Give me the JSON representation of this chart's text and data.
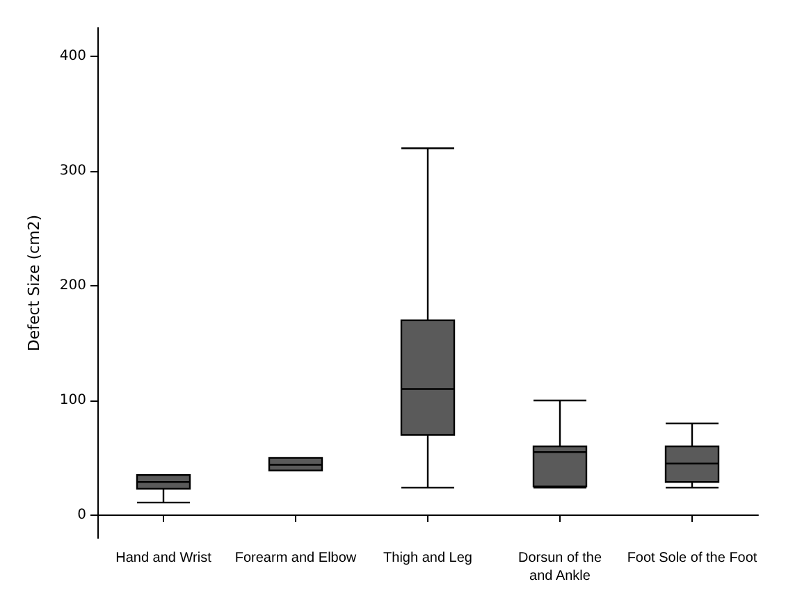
{
  "chart_data": {
    "type": "box",
    "ylabel": "Defect Size (cm2)",
    "categories": [
      "Hand and Wrist",
      "Forearm and Elbow",
      "Thigh and Leg",
      "Dorsun of the\nand Ankle",
      "Foot Sole of the Foot"
    ],
    "color": "#5a5a5a",
    "boxes": [
      {
        "low": 11,
        "q1": 23,
        "median": 29,
        "q3": 35,
        "high": 35
      },
      {
        "low": 39,
        "q1": 39,
        "median": 44,
        "q3": 50,
        "high": 50
      },
      {
        "low": 24,
        "q1": 70,
        "median": 110,
        "q3": 170,
        "high": 320
      },
      {
        "low": 24,
        "q1": 25,
        "median": 55,
        "q3": 60,
        "high": 100
      },
      {
        "low": 24,
        "q1": 29,
        "median": 45,
        "q3": 60,
        "high": 80
      }
    ],
    "ylim": [
      -20,
      425
    ],
    "yticks": [
      0,
      100,
      200,
      300,
      400
    ],
    "grid": false
  }
}
